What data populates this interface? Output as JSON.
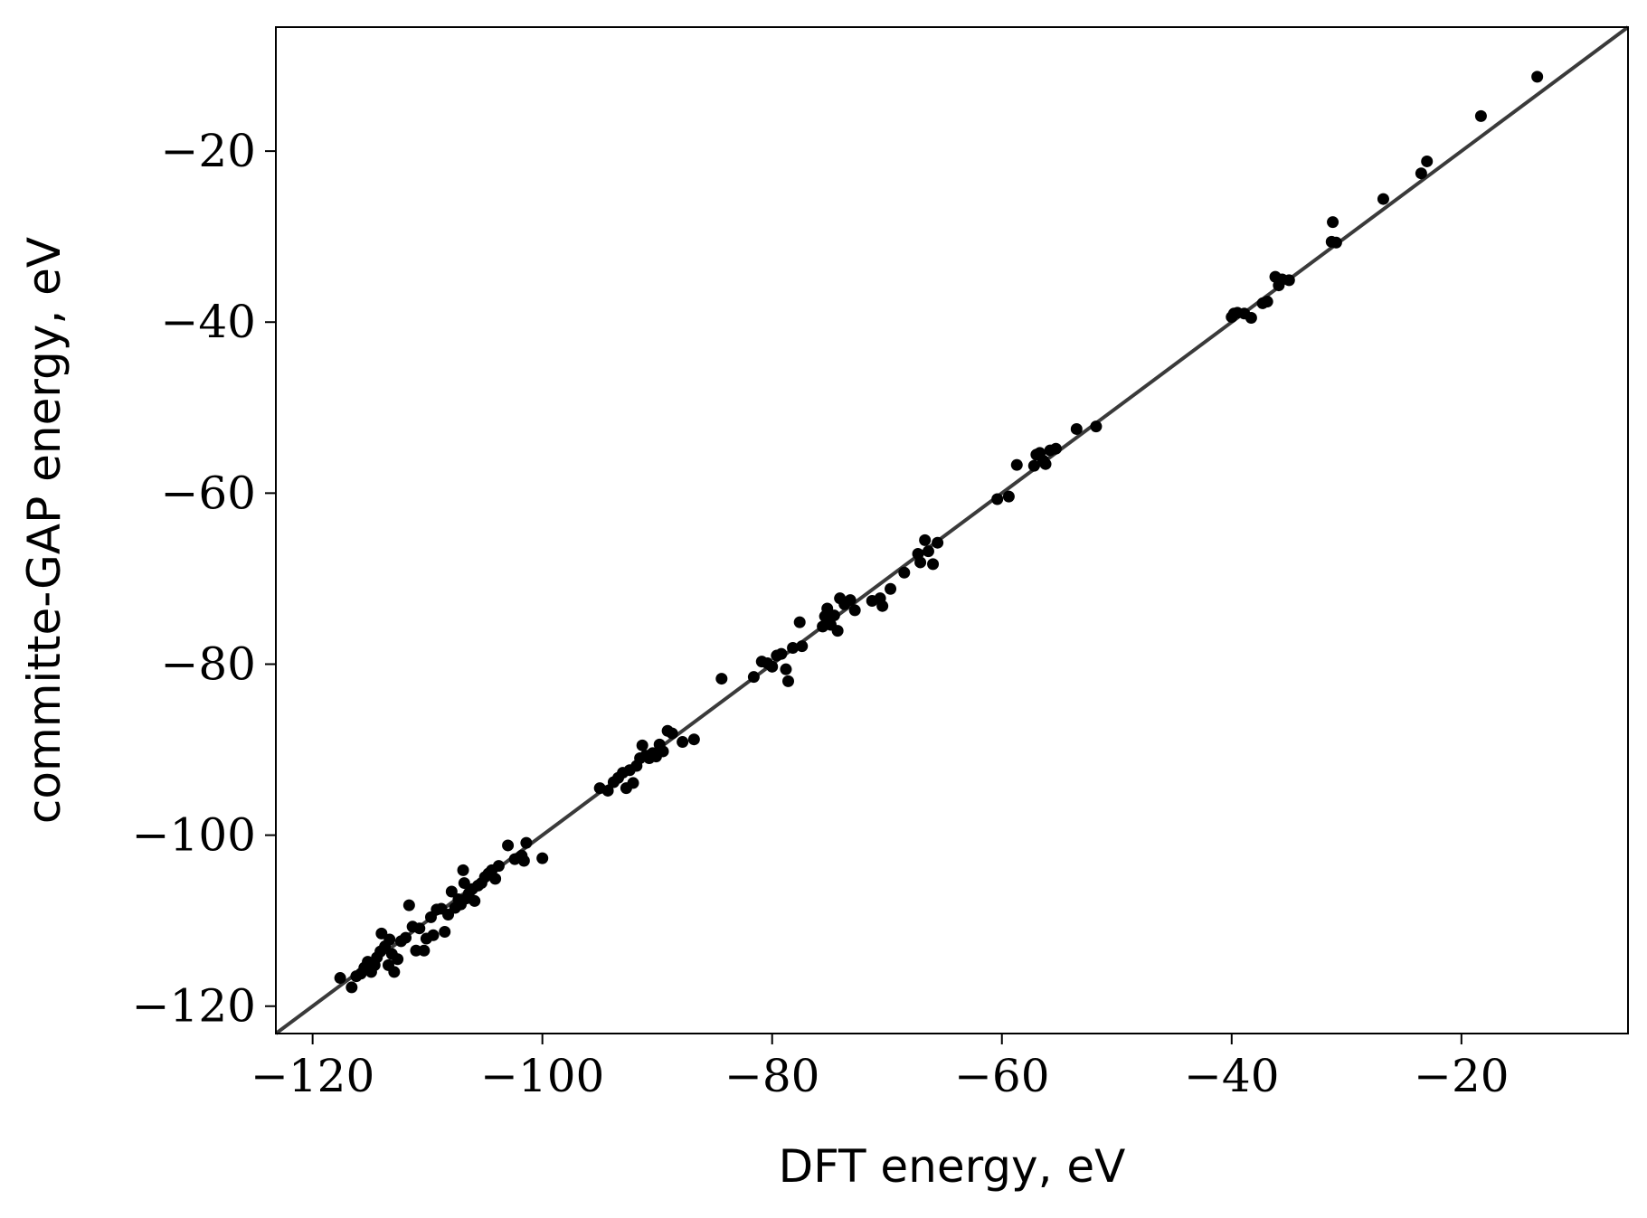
{
  "chart_data": {
    "type": "scatter",
    "title": "",
    "xlabel": "DFT energy, eV",
    "ylabel": "committe-GAP energy, eV",
    "xlim": [
      -123.2,
      -5.5
    ],
    "ylim": [
      -123.2,
      -5.5
    ],
    "xticks": [
      -120,
      -100,
      -80,
      -60,
      -40,
      -20
    ],
    "yticks": [
      -120,
      -100,
      -80,
      -60,
      -40,
      -20
    ],
    "xtick_labels": [
      "−120",
      "−100",
      "−80",
      "−60",
      "−40",
      "−20"
    ],
    "ytick_labels": [
      "−120",
      "−100",
      "−80",
      "−60",
      "−40",
      "−20"
    ],
    "grid": false,
    "legend": false,
    "reference_line": {
      "from": [
        -123.2,
        -123.2
      ],
      "to": [
        -5.5,
        -5.5
      ],
      "color": "#3a3a3a"
    },
    "marker_color": "#000000",
    "points": [
      [
        -117.6,
        -116.7
      ],
      [
        -116.6,
        -117.8
      ],
      [
        -116.2,
        -116.5
      ],
      [
        -115.8,
        -116.2
      ],
      [
        -115.5,
        -115.5
      ],
      [
        -115.2,
        -114.8
      ],
      [
        -114.9,
        -116.0
      ],
      [
        -114.6,
        -115.2
      ],
      [
        -114.4,
        -114.3
      ],
      [
        -114.1,
        -113.6
      ],
      [
        -114.0,
        -111.5
      ],
      [
        -113.7,
        -113.0
      ],
      [
        -113.4,
        -115.2
      ],
      [
        -113.3,
        -112.2
      ],
      [
        -113.1,
        -113.9
      ],
      [
        -112.9,
        -116.0
      ],
      [
        -112.6,
        -114.5
      ],
      [
        -112.3,
        -112.4
      ],
      [
        -111.9,
        -112.0
      ],
      [
        -111.6,
        -108.2
      ],
      [
        -111.3,
        -110.7
      ],
      [
        -111.0,
        -113.5
      ],
      [
        -110.7,
        -110.9
      ],
      [
        -110.3,
        -113.5
      ],
      [
        -110.1,
        -112.1
      ],
      [
        -109.7,
        -109.6
      ],
      [
        -109.5,
        -111.7
      ],
      [
        -109.2,
        -108.7
      ],
      [
        -108.8,
        -108.6
      ],
      [
        -108.5,
        -111.3
      ],
      [
        -108.2,
        -109.3
      ],
      [
        -107.9,
        -106.6
      ],
      [
        -107.6,
        -108.5
      ],
      [
        -107.3,
        -107.5
      ],
      [
        -107.1,
        -108.1
      ],
      [
        -106.9,
        -104.1
      ],
      [
        -106.8,
        -105.6
      ],
      [
        -106.6,
        -107.4
      ],
      [
        -106.4,
        -106.8
      ],
      [
        -106.1,
        -106.3
      ],
      [
        -105.9,
        -107.7
      ],
      [
        -105.6,
        -105.9
      ],
      [
        -105.3,
        -105.6
      ],
      [
        -105.0,
        -104.9
      ],
      [
        -104.7,
        -104.5
      ],
      [
        -104.4,
        -104.1
      ],
      [
        -104.1,
        -105.1
      ],
      [
        -103.8,
        -103.6
      ],
      [
        -103.0,
        -101.2
      ],
      [
        -102.4,
        -102.8
      ],
      [
        -101.8,
        -102.4
      ],
      [
        -101.6,
        -103.0
      ],
      [
        -101.4,
        -100.9
      ],
      [
        -100.0,
        -102.7
      ],
      [
        -95.0,
        -94.5
      ],
      [
        -94.3,
        -94.8
      ],
      [
        -93.8,
        -93.8
      ],
      [
        -93.4,
        -93.3
      ],
      [
        -93.0,
        -92.7
      ],
      [
        -92.7,
        -94.5
      ],
      [
        -92.4,
        -92.4
      ],
      [
        -92.1,
        -93.9
      ],
      [
        -91.8,
        -91.9
      ],
      [
        -91.5,
        -91.0
      ],
      [
        -91.3,
        -89.5
      ],
      [
        -91.0,
        -90.7
      ],
      [
        -90.7,
        -91.0
      ],
      [
        -90.4,
        -90.4
      ],
      [
        -90.1,
        -90.8
      ],
      [
        -89.8,
        -89.4
      ],
      [
        -89.5,
        -90.2
      ],
      [
        -89.1,
        -87.8
      ],
      [
        -88.7,
        -88.1
      ],
      [
        -87.8,
        -89.1
      ],
      [
        -86.8,
        -88.8
      ],
      [
        -84.4,
        -81.7
      ],
      [
        -81.6,
        -81.5
      ],
      [
        -80.9,
        -79.7
      ],
      [
        -80.4,
        -79.9
      ],
      [
        -80.0,
        -80.3
      ],
      [
        -79.6,
        -79.0
      ],
      [
        -79.2,
        -78.8
      ],
      [
        -78.8,
        -80.6
      ],
      [
        -78.6,
        -82.0
      ],
      [
        -78.2,
        -78.1
      ],
      [
        -77.6,
        -75.1
      ],
      [
        -77.4,
        -77.9
      ],
      [
        -75.6,
        -75.6
      ],
      [
        -75.4,
        -74.4
      ],
      [
        -75.2,
        -73.5
      ],
      [
        -74.9,
        -75.4
      ],
      [
        -74.6,
        -74.3
      ],
      [
        -74.3,
        -76.1
      ],
      [
        -74.1,
        -72.3
      ],
      [
        -73.7,
        -73.0
      ],
      [
        -73.2,
        -72.5
      ],
      [
        -72.8,
        -73.7
      ],
      [
        -71.3,
        -72.6
      ],
      [
        -70.6,
        -72.3
      ],
      [
        -70.4,
        -73.2
      ],
      [
        -69.7,
        -71.2
      ],
      [
        -68.5,
        -69.3
      ],
      [
        -67.3,
        -67.1
      ],
      [
        -67.1,
        -68.1
      ],
      [
        -66.7,
        -65.5
      ],
      [
        -66.4,
        -66.8
      ],
      [
        -66.0,
        -68.3
      ],
      [
        -65.6,
        -65.8
      ],
      [
        -60.4,
        -60.7
      ],
      [
        -59.4,
        -60.4
      ],
      [
        -58.7,
        -56.7
      ],
      [
        -57.2,
        -56.8
      ],
      [
        -57.0,
        -55.5
      ],
      [
        -56.7,
        -55.3
      ],
      [
        -56.4,
        -56.2
      ],
      [
        -56.2,
        -56.6
      ],
      [
        -55.8,
        -55.0
      ],
      [
        -55.3,
        -54.8
      ],
      [
        -53.5,
        -52.5
      ],
      [
        -51.8,
        -52.2
      ],
      [
        -40.0,
        -39.4
      ],
      [
        -39.8,
        -39.0
      ],
      [
        -39.5,
        -38.9
      ],
      [
        -38.9,
        -39.0
      ],
      [
        -38.3,
        -39.5
      ],
      [
        -37.3,
        -37.8
      ],
      [
        -36.9,
        -37.6
      ],
      [
        -36.2,
        -34.7
      ],
      [
        -35.9,
        -35.7
      ],
      [
        -35.6,
        -35.0
      ],
      [
        -35.0,
        -35.1
      ],
      [
        -31.3,
        -30.6
      ],
      [
        -31.2,
        -28.3
      ],
      [
        -30.9,
        -30.7
      ],
      [
        -26.8,
        -25.6
      ],
      [
        -23.5,
        -22.6
      ],
      [
        -23.0,
        -21.2
      ],
      [
        -18.3,
        -15.9
      ],
      [
        -13.4,
        -11.3
      ]
    ]
  }
}
